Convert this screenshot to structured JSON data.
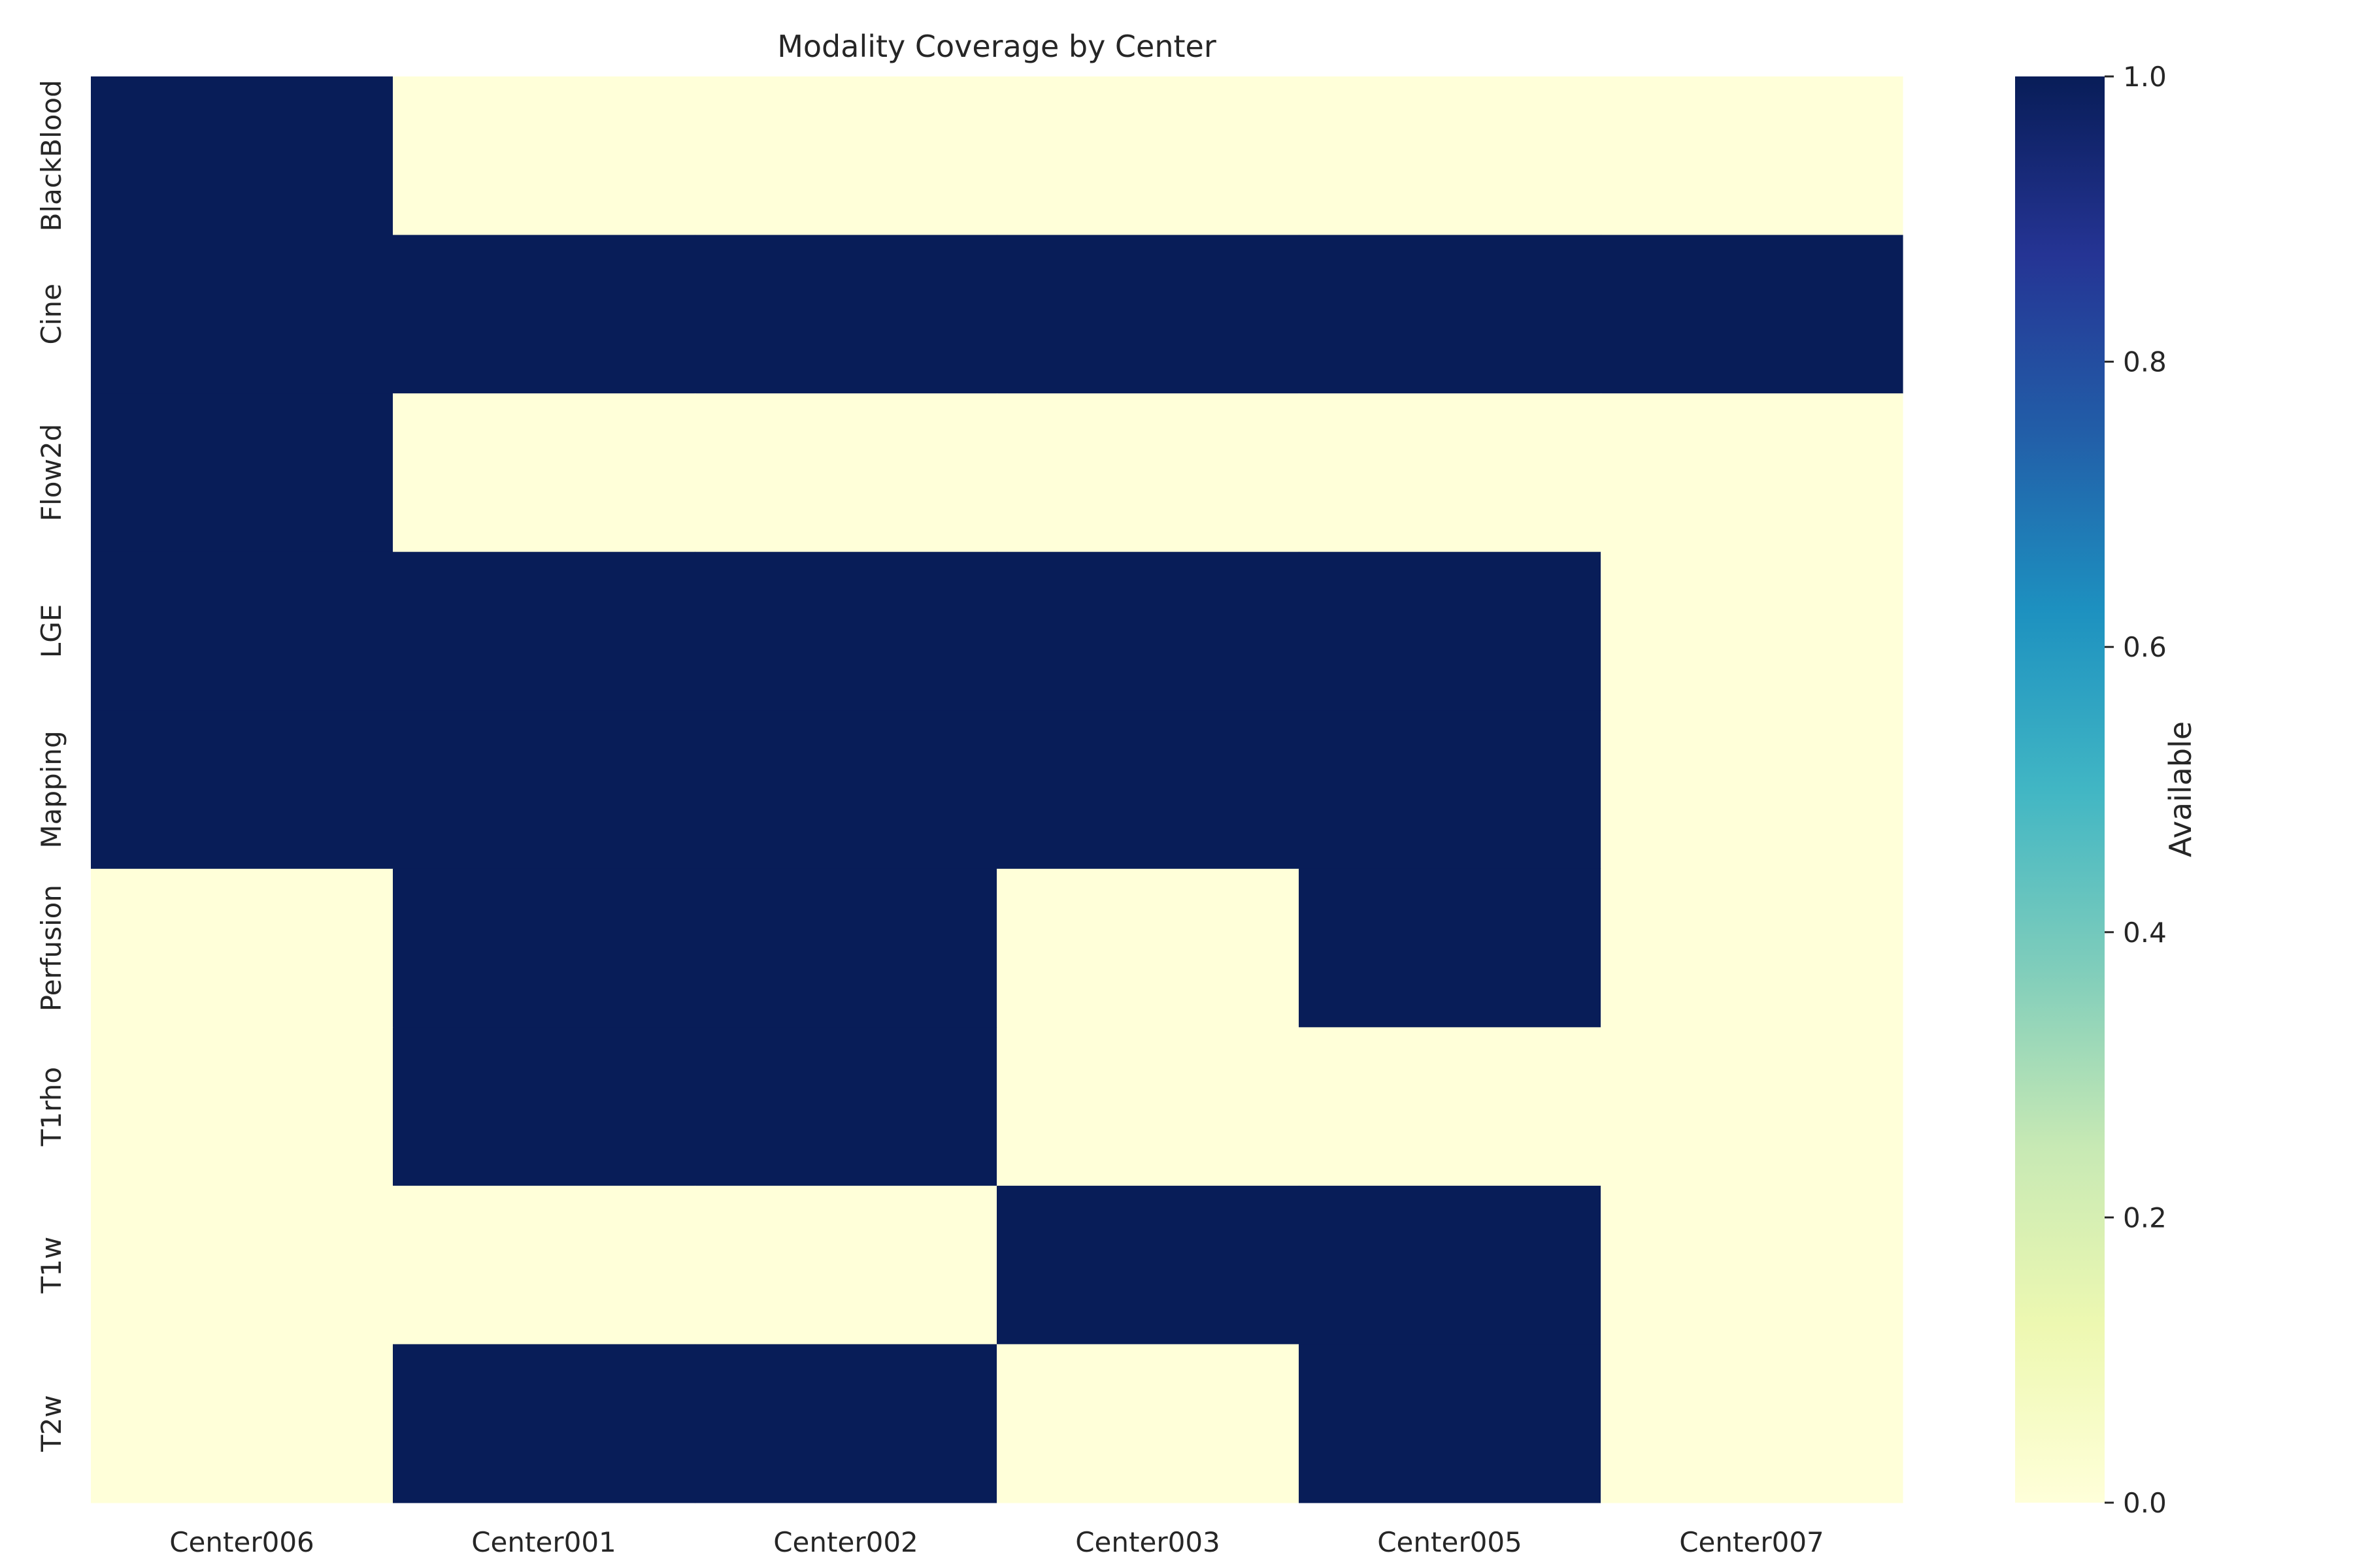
{
  "chart_data": {
    "type": "heatmap",
    "title": "Modality Coverage by Center",
    "xlabel": "",
    "ylabel": "",
    "x_categories": [
      "Center006",
      "Center001",
      "Center002",
      "Center003",
      "Center005",
      "Center007"
    ],
    "y_categories": [
      "BlackBlood",
      "Cine",
      "Flow2d",
      "LGE",
      "Mapping",
      "Perfusion",
      "T1rho",
      "T1w",
      "T2w"
    ],
    "values": [
      [
        1,
        0,
        0,
        0,
        0,
        0
      ],
      [
        1,
        1,
        1,
        1,
        1,
        1
      ],
      [
        1,
        0,
        0,
        0,
        0,
        0
      ],
      [
        1,
        1,
        1,
        1,
        1,
        0
      ],
      [
        1,
        1,
        1,
        1,
        1,
        0
      ],
      [
        0,
        1,
        1,
        0,
        1,
        0
      ],
      [
        0,
        1,
        1,
        0,
        0,
        0
      ],
      [
        0,
        0,
        0,
        1,
        1,
        0
      ],
      [
        0,
        1,
        1,
        0,
        1,
        0
      ]
    ],
    "colorbar": {
      "label": "Available",
      "min": 0.0,
      "max": 1.0,
      "ticks": [
        "0.0",
        "0.2",
        "0.4",
        "0.6",
        "0.8",
        "1.0"
      ],
      "colormap": "YlGnBu",
      "color_low": "#ffffd9",
      "color_high": "#081d58"
    },
    "grid": false,
    "legend": "colorbar right"
  }
}
